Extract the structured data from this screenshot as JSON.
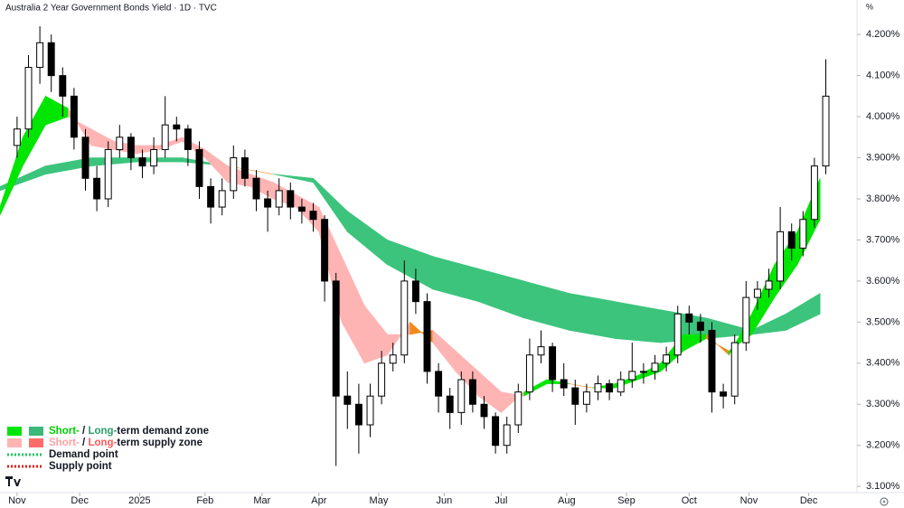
{
  "chart_data": {
    "type": "candlestick",
    "title": "Australia 2 Year Government Bonds Yield · 1D · TVC",
    "unit_label": "%",
    "xlim": [
      -6,
      294
    ],
    "ylim": [
      3.085,
      4.284
    ],
    "xticks": [
      {
        "value": 0,
        "label": "Nov"
      },
      {
        "value": 22,
        "label": "Dec"
      },
      {
        "value": 43,
        "label": "2025"
      },
      {
        "value": 66,
        "label": "Feb"
      },
      {
        "value": 86,
        "label": "Mar"
      },
      {
        "value": 106,
        "label": "Apr"
      },
      {
        "value": 127,
        "label": "May"
      },
      {
        "value": 150,
        "label": "Jun"
      },
      {
        "value": 170,
        "label": "Jul"
      },
      {
        "value": 193,
        "label": "Aug"
      },
      {
        "value": 214,
        "label": "Sep"
      },
      {
        "value": 236,
        "label": "Oct"
      },
      {
        "value": 257,
        "label": "Nov"
      },
      {
        "value": 278,
        "label": "Dec"
      }
    ],
    "yticks": [
      {
        "value": 3.1,
        "label": "3.100%"
      },
      {
        "value": 3.2,
        "label": "3.200%"
      },
      {
        "value": 3.3,
        "label": "3.300%"
      },
      {
        "value": 3.4,
        "label": "3.400%"
      },
      {
        "value": 3.5,
        "label": "3.500%"
      },
      {
        "value": 3.6,
        "label": "3.600%"
      },
      {
        "value": 3.7,
        "label": "3.700%"
      },
      {
        "value": 3.8,
        "label": "3.800%"
      },
      {
        "value": 3.9,
        "label": "3.900%"
      },
      {
        "value": 4.0,
        "label": "4.000%"
      },
      {
        "value": 4.1,
        "label": "4.100%"
      },
      {
        "value": 4.2,
        "label": "4.200%"
      }
    ],
    "up_color": "#ffffff",
    "down_color": "#000000",
    "wick_color": "#000000",
    "x": [
      0,
      4,
      8,
      12,
      16,
      20,
      24,
      28,
      32,
      36,
      40,
      44,
      48,
      52,
      56,
      60,
      64,
      68,
      72,
      76,
      80,
      84,
      88,
      92,
      96,
      100,
      104,
      108,
      112,
      116,
      120,
      124,
      128,
      132,
      136,
      140,
      144,
      148,
      152,
      156,
      160,
      164,
      168,
      172,
      176,
      180,
      184,
      188,
      192,
      196,
      200,
      204,
      208,
      212,
      216,
      220,
      224,
      228,
      232,
      236,
      240,
      244,
      248,
      252,
      256,
      260,
      264,
      268,
      272,
      276,
      280,
      284
    ],
    "open": [
      3.93,
      3.97,
      4.12,
      4.18,
      4.1,
      4.05,
      3.95,
      3.85,
      3.8,
      3.92,
      3.95,
      3.9,
      3.88,
      3.92,
      3.98,
      3.97,
      3.92,
      3.83,
      3.78,
      3.82,
      3.9,
      3.85,
      3.8,
      3.78,
      3.82,
      3.78,
      3.77,
      3.75,
      3.6,
      3.32,
      3.3,
      3.25,
      3.32,
      3.4,
      3.42,
      3.6,
      3.55,
      3.38,
      3.32,
      3.28,
      3.36,
      3.3,
      3.27,
      3.2,
      3.25,
      3.33,
      3.42,
      3.44,
      3.36,
      3.34,
      3.3,
      3.33,
      3.35,
      3.33,
      3.36,
      3.38,
      3.38,
      3.4,
      3.42,
      3.52,
      3.5,
      3.48,
      3.33,
      3.32,
      3.45,
      3.56,
      3.58,
      3.6,
      3.72,
      3.68,
      3.75,
      3.88
    ],
    "high": [
      4.0,
      4.15,
      4.22,
      4.2,
      4.12,
      4.07,
      3.97,
      3.88,
      3.94,
      3.98,
      3.96,
      3.92,
      3.95,
      4.05,
      4.0,
      3.98,
      3.94,
      3.85,
      3.85,
      3.93,
      3.92,
      3.87,
      3.82,
      3.85,
      3.84,
      3.8,
      3.79,
      3.76,
      3.62,
      3.38,
      3.35,
      3.35,
      3.43,
      3.45,
      3.65,
      3.63,
      3.57,
      3.4,
      3.34,
      3.38,
      3.38,
      3.32,
      3.28,
      3.27,
      3.35,
      3.46,
      3.48,
      3.45,
      3.4,
      3.36,
      3.35,
      3.37,
      3.36,
      3.38,
      3.45,
      3.4,
      3.42,
      3.44,
      3.54,
      3.54,
      3.52,
      3.5,
      3.35,
      3.47,
      3.6,
      3.6,
      3.63,
      3.78,
      3.74,
      3.77,
      3.9,
      4.14
    ],
    "low": [
      3.9,
      3.95,
      4.08,
      4.06,
      4.0,
      3.92,
      3.82,
      3.77,
      3.78,
      3.9,
      3.87,
      3.85,
      3.86,
      3.9,
      3.94,
      3.88,
      3.8,
      3.74,
      3.76,
      3.8,
      3.83,
      3.77,
      3.72,
      3.76,
      3.75,
      3.74,
      3.72,
      3.55,
      3.15,
      3.24,
      3.18,
      3.22,
      3.3,
      3.38,
      3.4,
      3.52,
      3.35,
      3.28,
      3.24,
      3.25,
      3.28,
      3.24,
      3.18,
      3.18,
      3.23,
      3.31,
      3.4,
      3.33,
      3.32,
      3.25,
      3.28,
      3.31,
      3.31,
      3.32,
      3.34,
      3.35,
      3.36,
      3.38,
      3.4,
      3.47,
      3.45,
      3.28,
      3.29,
      3.3,
      3.43,
      3.53,
      3.56,
      3.58,
      3.65,
      3.66,
      3.73,
      3.86
    ],
    "close": [
      3.97,
      4.12,
      4.18,
      4.1,
      4.05,
      3.95,
      3.85,
      3.8,
      3.92,
      3.95,
      3.9,
      3.88,
      3.92,
      3.98,
      3.97,
      3.92,
      3.83,
      3.78,
      3.82,
      3.9,
      3.85,
      3.8,
      3.78,
      3.82,
      3.78,
      3.77,
      3.75,
      3.6,
      3.32,
      3.3,
      3.25,
      3.32,
      3.4,
      3.42,
      3.6,
      3.55,
      3.38,
      3.32,
      3.28,
      3.36,
      3.3,
      3.27,
      3.2,
      3.25,
      3.33,
      3.42,
      3.44,
      3.36,
      3.34,
      3.3,
      3.33,
      3.35,
      3.33,
      3.36,
      3.38,
      3.38,
      3.4,
      3.42,
      3.52,
      3.5,
      3.48,
      3.33,
      3.32,
      3.45,
      3.56,
      3.58,
      3.6,
      3.72,
      3.68,
      3.75,
      3.88,
      4.05
    ],
    "long_zone": {
      "x": [
        -6,
        10,
        26,
        42,
        58,
        74,
        90,
        104,
        116,
        130,
        146,
        162,
        178,
        194,
        210,
        226,
        242,
        258,
        270,
        282
      ],
      "fast": [
        3.83,
        3.88,
        3.9,
        3.9,
        3.9,
        3.88,
        3.86,
        3.85,
        3.77,
        3.7,
        3.66,
        3.63,
        3.6,
        3.57,
        3.55,
        3.53,
        3.51,
        3.48,
        3.52,
        3.57
      ],
      "slow": [
        3.82,
        3.86,
        3.88,
        3.89,
        3.89,
        3.88,
        3.86,
        3.84,
        3.72,
        3.64,
        3.58,
        3.55,
        3.51,
        3.48,
        3.46,
        3.45,
        3.46,
        3.47,
        3.48,
        3.52
      ],
      "demand_color": "#3cc47c",
      "supply_color": "#ff7878",
      "neutral_color": "#f08a18"
    },
    "short_zone": {
      "x": [
        -6,
        2,
        10,
        18,
        26,
        34,
        42,
        50,
        58,
        66,
        74,
        82,
        90,
        98,
        106,
        114,
        122,
        130,
        138,
        146,
        154,
        162,
        170,
        178,
        186,
        194,
        202,
        210,
        218,
        226,
        234,
        242,
        250,
        258,
        266,
        274,
        282
      ],
      "fast": [
        3.78,
        3.95,
        4.05,
        4.02,
        3.93,
        3.92,
        3.91,
        3.92,
        3.94,
        3.9,
        3.84,
        3.83,
        3.8,
        3.78,
        3.72,
        3.5,
        3.4,
        3.42,
        3.5,
        3.45,
        3.38,
        3.32,
        3.28,
        3.33,
        3.36,
        3.35,
        3.34,
        3.35,
        3.37,
        3.4,
        3.47,
        3.47,
        3.42,
        3.52,
        3.64,
        3.72,
        3.85
      ],
      "slow": [
        3.76,
        3.88,
        3.98,
        4.0,
        3.97,
        3.94,
        3.93,
        3.93,
        3.95,
        3.92,
        3.88,
        3.86,
        3.84,
        3.81,
        3.78,
        3.66,
        3.54,
        3.47,
        3.47,
        3.48,
        3.43,
        3.38,
        3.33,
        3.32,
        3.35,
        3.35,
        3.34,
        3.34,
        3.36,
        3.38,
        3.43,
        3.46,
        3.43,
        3.47,
        3.56,
        3.64,
        3.75
      ],
      "demand_color": "#00e600",
      "supply_color": "#ffb4b4",
      "neutral_color": "#f08a18"
    },
    "legend": [
      {
        "swatches": [
          "#00e600",
          "#3cb878"
        ],
        "parts": [
          {
            "text": "Short-",
            "color": "#00d000"
          },
          {
            "text": " / ",
            "color": "#131722"
          },
          {
            "text": "Long-",
            "color": "#2e9e6a"
          },
          {
            "text": "term demand zone",
            "color": "#131722"
          }
        ]
      },
      {
        "swatches": [
          "#ffb4b4",
          "#ff6b6b"
        ],
        "parts": [
          {
            "text": "Short-",
            "color": "#ffa0a0"
          },
          {
            "text": " / ",
            "color": "#131722"
          },
          {
            "text": "Long-",
            "color": "#ff5a5a"
          },
          {
            "text": "term supply zone",
            "color": "#131722"
          }
        ]
      },
      {
        "line_color": "#22c55e",
        "parts": [
          {
            "text": "Demand point",
            "color": "#131722"
          }
        ]
      },
      {
        "line_color": "#e01e1e",
        "parts": [
          {
            "text": "Supply point",
            "color": "#131722"
          }
        ]
      }
    ]
  }
}
